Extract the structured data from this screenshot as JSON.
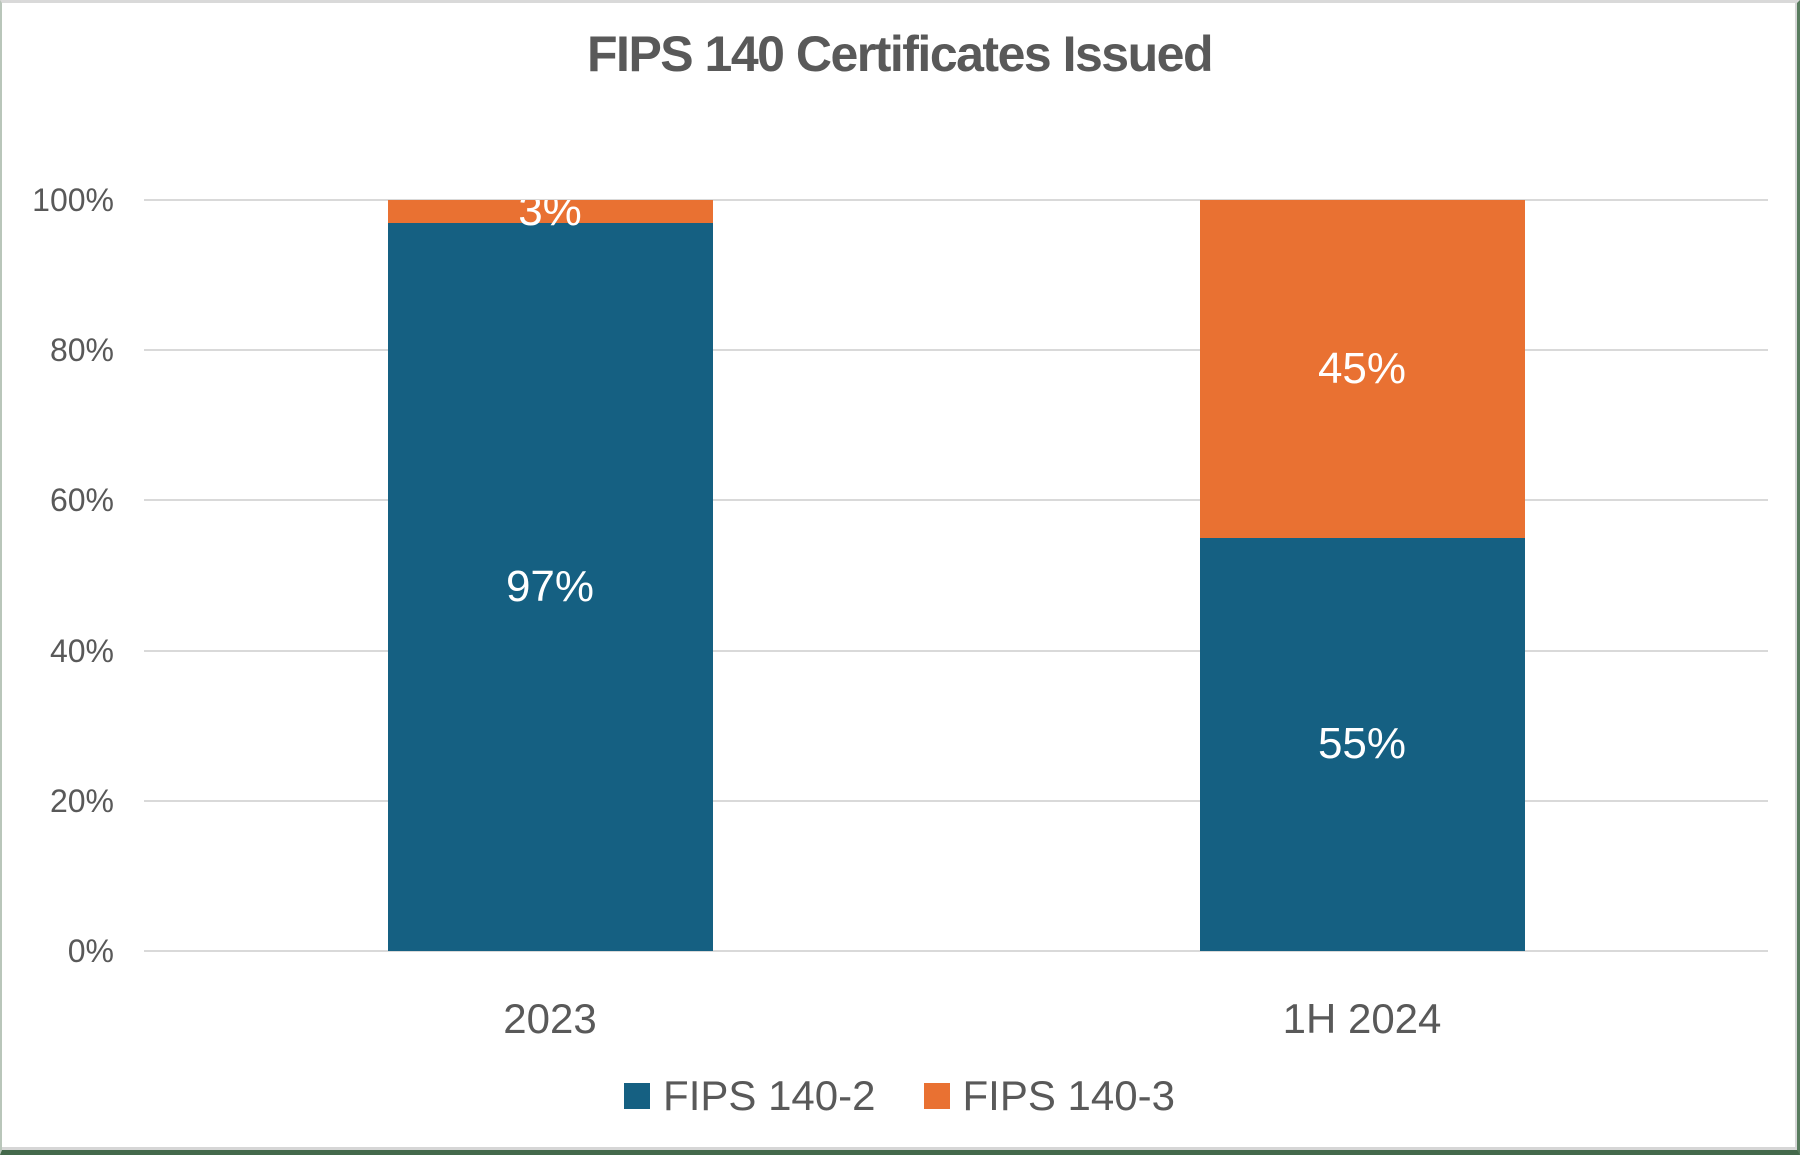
{
  "chart_data": {
    "type": "bar",
    "stacked": true,
    "title": "FIPS 140 Certificates Issued",
    "categories": [
      "2023",
      "1H 2024"
    ],
    "series": [
      {
        "name": "FIPS 140-2",
        "color": "#156082",
        "values": [
          97,
          55
        ],
        "labels": [
          "97%",
          "55%"
        ]
      },
      {
        "name": "FIPS 140-3",
        "color": "#E97132",
        "values": [
          3,
          45
        ],
        "labels": [
          "3%",
          "45%"
        ]
      }
    ],
    "xlabel": "",
    "ylabel": "",
    "ylim": [
      0,
      100
    ],
    "yticks": [
      0,
      20,
      40,
      60,
      80,
      100
    ],
    "ytick_suffix": "%",
    "grid": true,
    "gridline_color": "#D9D9D9",
    "legend_position": "bottom",
    "text_color": "#595959",
    "data_label_color": "#FFFFFF",
    "background": "#FFFFFF"
  },
  "frame": {
    "outer_border_green": "#44694B",
    "inner_shadow_gray": "#D6D6D6"
  }
}
